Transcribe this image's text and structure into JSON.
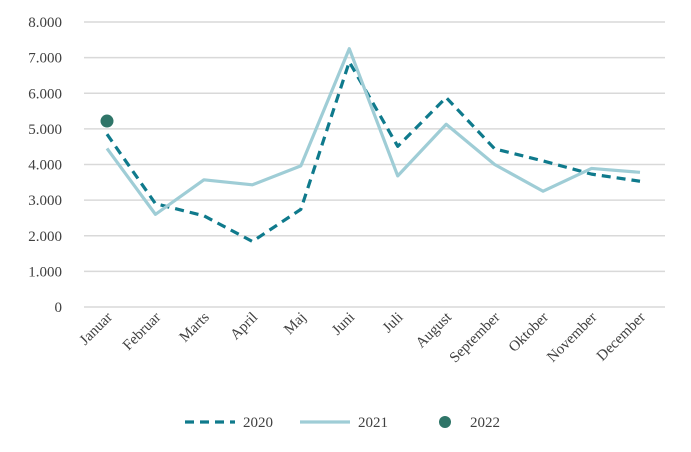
{
  "chart_data": {
    "type": "line",
    "title": "",
    "xlabel": "",
    "ylabel": "",
    "ylim": [
      0,
      8000
    ],
    "yticks": [
      "0",
      "1.000",
      "2.000",
      "3.000",
      "4.000",
      "5.000",
      "6.000",
      "7.000",
      "8.000"
    ],
    "grid": true,
    "legend_position": "bottom",
    "categories": [
      "Januar",
      "Februar",
      "Marts",
      "April",
      "Maj",
      "Juni",
      "Juli",
      "August",
      "September",
      "Oktober",
      "November",
      "December"
    ],
    "series": [
      {
        "name": "2020",
        "style": "dashed",
        "color": "#0f7a8c",
        "values": [
          4850,
          2900,
          2560,
          1840,
          2740,
          6880,
          4510,
          5880,
          4440,
          4100,
          3730,
          3530
        ]
      },
      {
        "name": "2021",
        "style": "solid",
        "color": "#9fcdd6",
        "values": [
          4450,
          2600,
          3570,
          3430,
          3960,
          7250,
          3680,
          5130,
          4000,
          3250,
          3890,
          3780
        ]
      },
      {
        "name": "2022",
        "style": "marker",
        "color": "#2f7568",
        "values": [
          5220,
          null,
          null,
          null,
          null,
          null,
          null,
          null,
          null,
          null,
          null,
          null
        ]
      }
    ]
  }
}
